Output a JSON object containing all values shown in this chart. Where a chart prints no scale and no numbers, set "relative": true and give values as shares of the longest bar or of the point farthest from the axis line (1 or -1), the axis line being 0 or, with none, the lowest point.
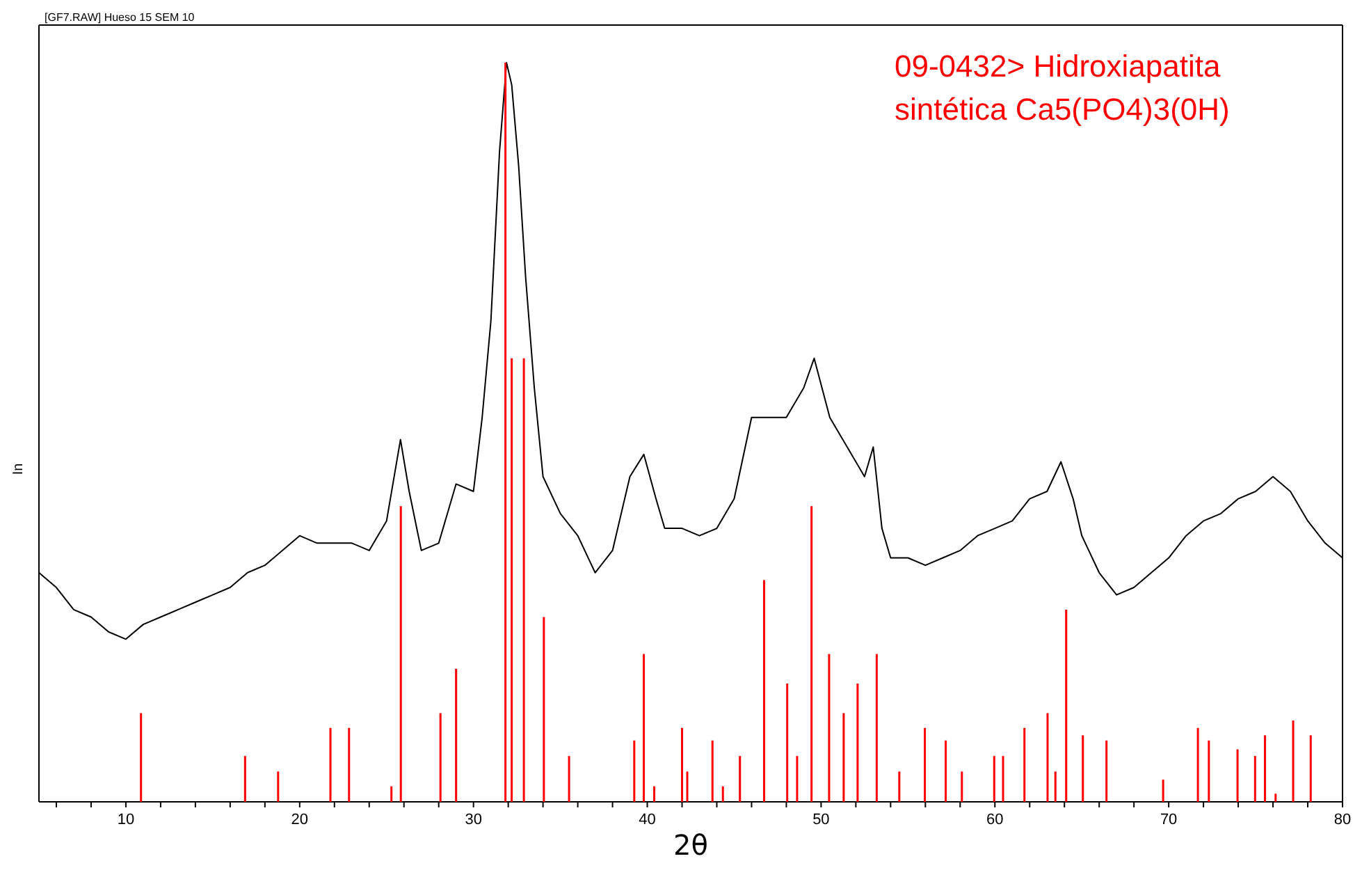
{
  "chart_data": {
    "type": "line",
    "title": "[GF7.RAW] Hueso 15 SEM 10",
    "xlabel": "2θ",
    "ylabel": "In",
    "relative": true,
    "legend": "top right",
    "xlim": [
      5,
      80
    ],
    "xticks": [
      {
        "value": 6,
        "label": null
      },
      {
        "value": 8,
        "label": null
      },
      10,
      {
        "value": 12,
        "label": null
      },
      {
        "value": 14,
        "label": null
      },
      {
        "value": 16,
        "label": null
      },
      {
        "value": 18,
        "label": null
      },
      20,
      {
        "value": 22,
        "label": null
      },
      {
        "value": 24,
        "label": null
      },
      {
        "value": 26,
        "label": null
      },
      {
        "value": 28,
        "label": null
      },
      30,
      {
        "value": 32,
        "label": null
      },
      {
        "value": 34,
        "label": null
      },
      {
        "value": 36,
        "label": null
      },
      {
        "value": 38,
        "label": null
      },
      40,
      {
        "value": 42,
        "label": null
      },
      {
        "value": 44,
        "label": null
      },
      {
        "value": 46,
        "label": null
      },
      {
        "value": 48,
        "label": null
      },
      50,
      {
        "value": 52,
        "label": null
      },
      {
        "value": 54,
        "label": null
      },
      {
        "value": 56,
        "label": null
      },
      {
        "value": 58,
        "label": null
      },
      60,
      {
        "value": 62,
        "label": null
      },
      {
        "value": 64,
        "label": null
      },
      {
        "value": 66,
        "label": null
      },
      {
        "value": 68,
        "label": null
      },
      70,
      {
        "value": 72,
        "label": null
      },
      {
        "value": 74,
        "label": null
      },
      {
        "value": 76,
        "label": null
      },
      {
        "value": 78,
        "label": null
      },
      80
    ],
    "series": [
      {
        "color": "#000000",
        "x": [
          5,
          6,
          7,
          8,
          9,
          10,
          11,
          12,
          13,
          14,
          15,
          16,
          17,
          18,
          19,
          20,
          21,
          22,
          23,
          24,
          25,
          25.8,
          26.3,
          27,
          28,
          29,
          30,
          30.5,
          31,
          31.5,
          31.9,
          32.2,
          32.6,
          33,
          33.5,
          34,
          35,
          36,
          37,
          38,
          39,
          39.8,
          40.5,
          41,
          42,
          43,
          44,
          45,
          46,
          47,
          48,
          49,
          49.6,
          50.5,
          51.5,
          52.5,
          53,
          53.5,
          54,
          55,
          56,
          57,
          58,
          59,
          60,
          61,
          62,
          63,
          63.8,
          64.5,
          65,
          66,
          67,
          68,
          69,
          70,
          71,
          72,
          73,
          74,
          75,
          76,
          77,
          78,
          79,
          80
        ],
        "values": [
          0.31,
          0.29,
          0.26,
          0.25,
          0.23,
          0.22,
          0.24,
          0.25,
          0.26,
          0.27,
          0.28,
          0.29,
          0.31,
          0.32,
          0.34,
          0.36,
          0.35,
          0.35,
          0.35,
          0.34,
          0.38,
          0.49,
          0.42,
          0.34,
          0.35,
          0.43,
          0.42,
          0.52,
          0.65,
          0.88,
          1.0,
          0.97,
          0.86,
          0.71,
          0.56,
          0.44,
          0.39,
          0.36,
          0.31,
          0.34,
          0.44,
          0.47,
          0.41,
          0.37,
          0.37,
          0.36,
          0.37,
          0.41,
          0.52,
          0.52,
          0.52,
          0.56,
          0.6,
          0.52,
          0.48,
          0.44,
          0.48,
          0.37,
          0.33,
          0.33,
          0.32,
          0.33,
          0.34,
          0.36,
          0.37,
          0.38,
          0.41,
          0.42,
          0.46,
          0.41,
          0.36,
          0.31,
          0.28,
          0.29,
          0.31,
          0.33,
          0.36,
          0.38,
          0.39,
          0.41,
          0.42,
          0.44,
          0.42,
          0.38,
          0.35,
          0.33
        ]
      },
      {
        "type": "bar",
        "name": "09-0432> Hidroxiapatita sintética Ca5(PO4)3(0H)",
        "color": "#ff0000",
        "x": [
          10.87,
          16.86,
          18.76,
          21.77,
          22.84,
          25.28,
          25.82,
          28.1,
          29.0,
          31.84,
          32.2,
          32.9,
          34.05,
          35.5,
          39.25,
          39.8,
          40.4,
          42.0,
          42.3,
          43.75,
          44.35,
          45.33,
          46.72,
          48.05,
          48.62,
          49.45,
          50.46,
          51.3,
          52.1,
          53.2,
          54.5,
          55.97,
          57.17,
          58.1,
          59.96,
          60.47,
          61.7,
          63.03,
          63.48,
          64.1,
          65.06,
          66.42,
          69.68,
          71.68,
          72.31,
          73.96,
          74.97,
          75.54,
          76.15,
          77.16,
          78.17
        ],
        "values": [
          0.12,
          0.062,
          0.041,
          0.1,
          0.1,
          0.021,
          0.4,
          0.12,
          0.18,
          1.0,
          0.6,
          0.6,
          0.25,
          0.062,
          0.083,
          0.2,
          0.021,
          0.1,
          0.041,
          0.083,
          0.021,
          0.062,
          0.3,
          0.16,
          0.062,
          0.4,
          0.2,
          0.12,
          0.16,
          0.2,
          0.041,
          0.1,
          0.083,
          0.041,
          0.062,
          0.062,
          0.1,
          0.12,
          0.041,
          0.26,
          0.09,
          0.083,
          0.03,
          0.1,
          0.083,
          0.071,
          0.062,
          0.09,
          0.011,
          0.11,
          0.09
        ]
      }
    ]
  }
}
